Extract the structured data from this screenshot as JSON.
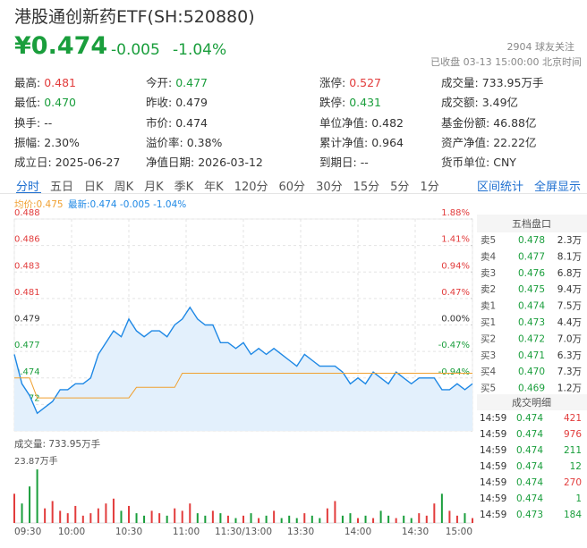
{
  "header": {
    "title": "港股通创新药ETF(SH:520880)",
    "price": "¥0.474",
    "change": -0.005,
    "change_pct": "-1.04%",
    "followers": "2904 球友关注",
    "status": "已收盘 03-13 15:00:00 北京时间",
    "color": "#1a9e3c"
  },
  "stats": [
    [
      {
        "label": "最高:",
        "value": 0.481,
        "color": "#e23c3c"
      },
      {
        "label": "今开:",
        "value": 0.477,
        "color": "#1a9e3c"
      },
      {
        "label": "涨停:",
        "value": 0.527,
        "color": "#e23c3c"
      },
      {
        "label": "成交量:",
        "value": "733.95万手"
      }
    ],
    [
      {
        "label": "最低:",
        "value": "0.470",
        "color": "#1a9e3c"
      },
      {
        "label": "昨收:",
        "value": 0.479
      },
      {
        "label": "跌停:",
        "value": 0.431,
        "color": "#1a9e3c"
      },
      {
        "label": "成交额:",
        "value": "3.49亿"
      }
    ],
    [
      {
        "label": "换手:",
        "value": "--"
      },
      {
        "label": "市价:",
        "value": 0.474
      },
      {
        "label": "单位净值:",
        "value": 0.482
      },
      {
        "label": "基金份额:",
        "value": "46.88亿"
      }
    ],
    [
      {
        "label": "振幅:",
        "value": "2.30%"
      },
      {
        "label": "溢价率:",
        "value": "0.38%"
      },
      {
        "label": "累计净值:",
        "value": 0.964
      },
      {
        "label": "资产净值:",
        "value": "22.22亿"
      }
    ],
    [
      {
        "label": "成立日:",
        "value": "2025-06-27"
      },
      {
        "label": "净值日期:",
        "value": "2026-03-12"
      },
      {
        "label": "到期日:",
        "value": "--"
      },
      {
        "label": "货币单位:",
        "value": "CNY"
      }
    ]
  ],
  "tabs": [
    "分时",
    "五日",
    "日K",
    "周K",
    "月K",
    "季K",
    "年K",
    "120分",
    "60分",
    "30分",
    "15分",
    "5分",
    "1分"
  ],
  "tab_links": [
    "区间统计",
    "全屏显示"
  ],
  "legend": {
    "avg": "均价:0.475",
    "latest": "最新:0.474 -0.005 -1.04%"
  },
  "chart_data": [
    {
      "type": "line",
      "xlim": [
        0,
        240
      ],
      "xticks": [
        {
          "value": 0,
          "label": "09:30"
        },
        {
          "value": 30,
          "label": "10:00"
        },
        {
          "value": 60,
          "label": "10:30"
        },
        {
          "value": 90,
          "label": "11:00"
        },
        {
          "value": 120,
          "label": "11:30/13:00"
        },
        {
          "value": 150,
          "label": "13:30"
        },
        {
          "value": 180,
          "label": "14:00"
        },
        {
          "value": 210,
          "label": "14:30"
        },
        {
          "value": 240,
          "label": "15:00"
        }
      ],
      "ylim": [
        0.47,
        0.488
      ],
      "yticks": [
        0.488,
        {
          "value": 0.48575,
          "label": "0.486"
        },
        {
          "value": 0.4835,
          "label": "0.483"
        },
        {
          "value": 0.48125,
          "label": "0.481"
        },
        0.479,
        {
          "value": 0.47675,
          "label": "0.477"
        },
        {
          "value": 0.4745,
          "label": "0.474"
        },
        {
          "value": 0.47225,
          "label": "0.472"
        },
        {
          "value": 0.47,
          "label": "0.470"
        }
      ],
      "y2lim": [
        -1.88,
        1.88
      ],
      "y2ticks": [
        {
          "value": 1.88,
          "label": "1.88%"
        },
        {
          "value": 1.41,
          "label": "1.41%"
        },
        {
          "value": 0.94,
          "label": "0.94%"
        },
        {
          "value": 0.47,
          "label": "0.47%"
        },
        {
          "value": 0,
          "label": "0.00%"
        },
        {
          "value": -0.47,
          "label": "-0.47%"
        },
        {
          "value": -0.94,
          "label": "-0.94%"
        },
        {
          "value": -1.41,
          "label": "-1.41%"
        },
        {
          "value": -1.88,
          "label": "-1.88%"
        }
      ],
      "y2_color_up": "#e23c3c",
      "y2_color_down": "#1a9e3c",
      "grid": true,
      "x": [
        0,
        4,
        8,
        12,
        16,
        20,
        24,
        28,
        32,
        36,
        40,
        44,
        48,
        52,
        56,
        60,
        64,
        68,
        72,
        76,
        80,
        84,
        88,
        92,
        96,
        100,
        104,
        108,
        112,
        116,
        120,
        124,
        128,
        132,
        136,
        140,
        144,
        148,
        152,
        156,
        160,
        164,
        168,
        172,
        176,
        180,
        184,
        188,
        192,
        196,
        200,
        204,
        208,
        212,
        216,
        220,
        224,
        228,
        232,
        236,
        240
      ],
      "series": [
        {
          "color": "#1e88e5",
          "area": true,
          "values": [
            0.4765,
            0.474,
            0.473,
            0.4715,
            0.472,
            0.4725,
            0.4735,
            0.4735,
            0.474,
            0.474,
            0.4745,
            0.4765,
            0.4775,
            0.4785,
            0.478,
            0.4795,
            0.4785,
            0.478,
            0.4785,
            0.4785,
            0.478,
            0.479,
            0.4795,
            0.4805,
            0.4795,
            0.479,
            0.479,
            0.4775,
            0.4775,
            0.477,
            0.4775,
            0.4765,
            0.477,
            0.4765,
            0.477,
            0.4765,
            0.476,
            0.4755,
            0.4765,
            0.476,
            0.4755,
            0.4755,
            0.4755,
            0.475,
            0.474,
            0.4745,
            0.474,
            0.475,
            0.4745,
            0.474,
            0.475,
            0.4745,
            0.474,
            0.4745,
            0.4745,
            0.4745,
            0.4735,
            0.4735,
            0.474,
            0.4735,
            0.474
          ]
        },
        {
          "color": "#f0a030",
          "values": [
            0.4745,
            0.4745,
            0.4745,
            0.4728,
            0.4728,
            0.4728,
            0.4728,
            0.4728,
            0.4728,
            0.4728,
            0.4728,
            0.4728,
            0.4728,
            0.4728,
            0.4728,
            0.4728,
            0.4737,
            0.4737,
            0.4737,
            0.4737,
            0.4737,
            0.4737,
            0.4749,
            0.4749,
            0.4749,
            0.4749,
            0.4749,
            0.4749,
            0.4749,
            0.4749,
            0.4749,
            0.4749,
            0.4749,
            0.4749,
            0.4749,
            0.4749,
            0.4749,
            0.4749,
            0.4749,
            0.4749,
            0.4749,
            0.4749,
            0.4749,
            0.4749,
            0.4749,
            0.4749,
            0.4749,
            0.4749,
            0.4749,
            0.4749,
            0.4749,
            0.4749,
            0.4749,
            0.4749,
            0.4749,
            0.4749,
            0.4749,
            0.4749,
            0.4749,
            0.4749,
            0.4749
          ]
        }
      ]
    },
    {
      "type": "bar",
      "title": "成交量: 733.95万手",
      "xlim": [
        0,
        240
      ],
      "ylim": [
        0,
        23.87
      ],
      "yticks": [
        {
          "value": 23.87,
          "label": "23.87万手"
        }
      ],
      "up_color": "#e23c3c",
      "down_color": "#1a9e3c",
      "x": [
        0,
        4,
        8,
        12,
        16,
        20,
        24,
        28,
        32,
        36,
        40,
        44,
        48,
        52,
        56,
        60,
        64,
        68,
        72,
        76,
        80,
        84,
        88,
        92,
        96,
        100,
        104,
        108,
        112,
        116,
        120,
        124,
        128,
        132,
        136,
        140,
        144,
        148,
        152,
        156,
        160,
        164,
        168,
        172,
        176,
        180,
        184,
        188,
        192,
        196,
        200,
        204,
        208,
        212,
        216,
        220,
        224,
        228,
        232,
        236,
        240
      ],
      "values": [
        12,
        8,
        15,
        22,
        6,
        9,
        5,
        4,
        7,
        3,
        4,
        6,
        8,
        10,
        5,
        7,
        4,
        3,
        5,
        4,
        3,
        6,
        5,
        8,
        4,
        3,
        5,
        4,
        3,
        2,
        3,
        4,
        2,
        3,
        5,
        2,
        3,
        2,
        4,
        3,
        2,
        6,
        9,
        3,
        4,
        2,
        3,
        2,
        5,
        3,
        2,
        3,
        2,
        4,
        3,
        8,
        12,
        5,
        3,
        4,
        2
      ]
    }
  ],
  "order_book": {
    "title": "五档盘口",
    "price_color": "#1a9e3c",
    "rows": [
      {
        "label": "卖5",
        "price": 0.478,
        "volume": "2.3万"
      },
      {
        "label": "卖4",
        "price": 0.477,
        "volume": "8.1万"
      },
      {
        "label": "卖3",
        "price": 0.476,
        "volume": "6.8万"
      },
      {
        "label": "卖2",
        "price": 0.475,
        "volume": "9.4万"
      },
      {
        "label": "卖1",
        "price": 0.474,
        "volume": "7.5万"
      },
      {
        "label": "买1",
        "price": 0.473,
        "volume": "4.4万"
      },
      {
        "label": "买2",
        "price": 0.472,
        "volume": "7.0万"
      },
      {
        "label": "买3",
        "price": 0.471,
        "volume": "6.3万"
      },
      {
        "label": "买4",
        "price": "0.470",
        "volume": "7.3万"
      },
      {
        "label": "买5",
        "price": 0.469,
        "volume": "1.2万"
      }
    ]
  },
  "trades": {
    "title": "成交明细",
    "price_color": "#1a9e3c",
    "rows": [
      {
        "time": "14:59",
        "price": 0.474,
        "volume": 421,
        "color": "#e23c3c"
      },
      {
        "time": "14:59",
        "price": 0.474,
        "volume": 976,
        "color": "#e23c3c"
      },
      {
        "time": "14:59",
        "price": 0.474,
        "volume": 211,
        "color": "#1a9e3c"
      },
      {
        "time": "14:59",
        "price": 0.474,
        "volume": 12,
        "color": "#1a9e3c"
      },
      {
        "time": "14:59",
        "price": 0.474,
        "volume": 270,
        "color": "#e23c3c"
      },
      {
        "time": "14:59",
        "price": 0.474,
        "volume": 1,
        "color": "#1a9e3c"
      },
      {
        "time": "14:59",
        "price": 0.473,
        "volume": 184,
        "color": "#1a9e3c"
      }
    ]
  }
}
